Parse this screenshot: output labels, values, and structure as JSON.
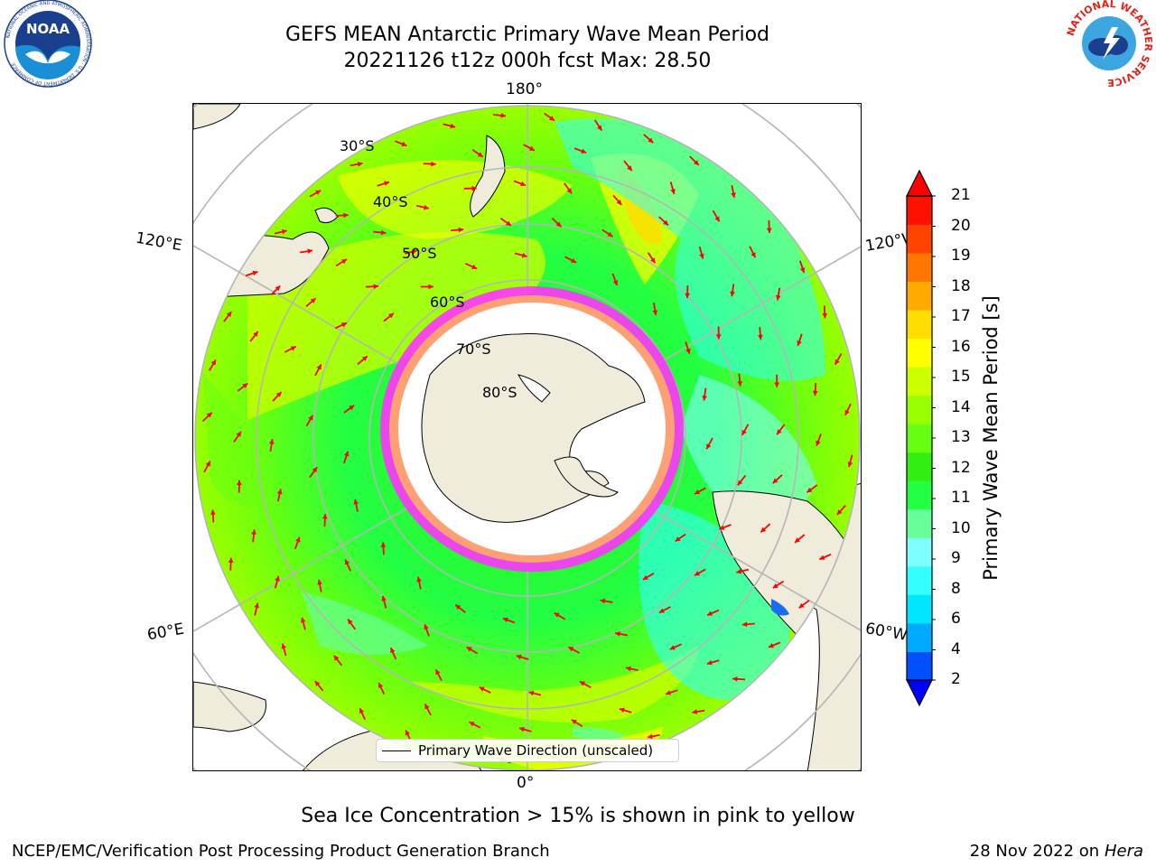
{
  "header": {
    "title_line1": "GEFS MEAN Antarctic Primary Wave Mean Period",
    "title_line2": "20221126 t12z 000h fcst   Max: 28.50"
  },
  "logos": {
    "left": {
      "name": "NOAA",
      "ring_text": "NATIONAL OCEANIC AND ATMOSPHERIC ADMINISTRATION · U.S. DEPARTMENT OF COMMERCE",
      "color": "#1b3f8f"
    },
    "right": {
      "name": "NATIONAL WEATHER SERVICE",
      "color": "#e2231a"
    }
  },
  "map": {
    "projection": "south polar stereographic",
    "longitude_labels": {
      "top": "180°",
      "bottom": "0°",
      "upper_left": "120°E",
      "upper_right": "120°W",
      "lower_left": "60°E",
      "lower_right": "60°W"
    },
    "latitude_labels": [
      "30°S",
      "40°S",
      "50°S",
      "60°S",
      "70°S",
      "80°S"
    ],
    "colors": {
      "land": "#efecdc",
      "coastline": "#000000",
      "grid": "#b5b5b5",
      "arrows": "#ff0000",
      "ice": "#ff33ff",
      "ocean_background": "#ffffff"
    }
  },
  "legend": {
    "label": "Primary Wave Direction (unscaled)"
  },
  "colorbar": {
    "label": "Primary Wave Mean Period [s]",
    "ticks": [
      "21",
      "20",
      "19",
      "18",
      "17",
      "16",
      "15",
      "14",
      "13",
      "12",
      "11",
      "10",
      "9",
      "8",
      "6",
      "4",
      "2"
    ],
    "colors": [
      "#0000ff",
      "#0050ff",
      "#00aaff",
      "#00e6ff",
      "#33ffff",
      "#7fffff",
      "#66ff99",
      "#22ff44",
      "#33ee11",
      "#66ff11",
      "#99ff00",
      "#ccff00",
      "#ffff00",
      "#ffdd00",
      "#ffaa00",
      "#ff7700",
      "#ff4400",
      "#ff1100",
      "#ff0000"
    ]
  },
  "note": "Sea Ice Concentration > 15% is shown in pink to yellow",
  "footer": {
    "left": "NCEP/EMC/Verification Post Processing Product Generation Branch",
    "right_date": "28 Nov 2022 on",
    "right_host": "Hera"
  }
}
